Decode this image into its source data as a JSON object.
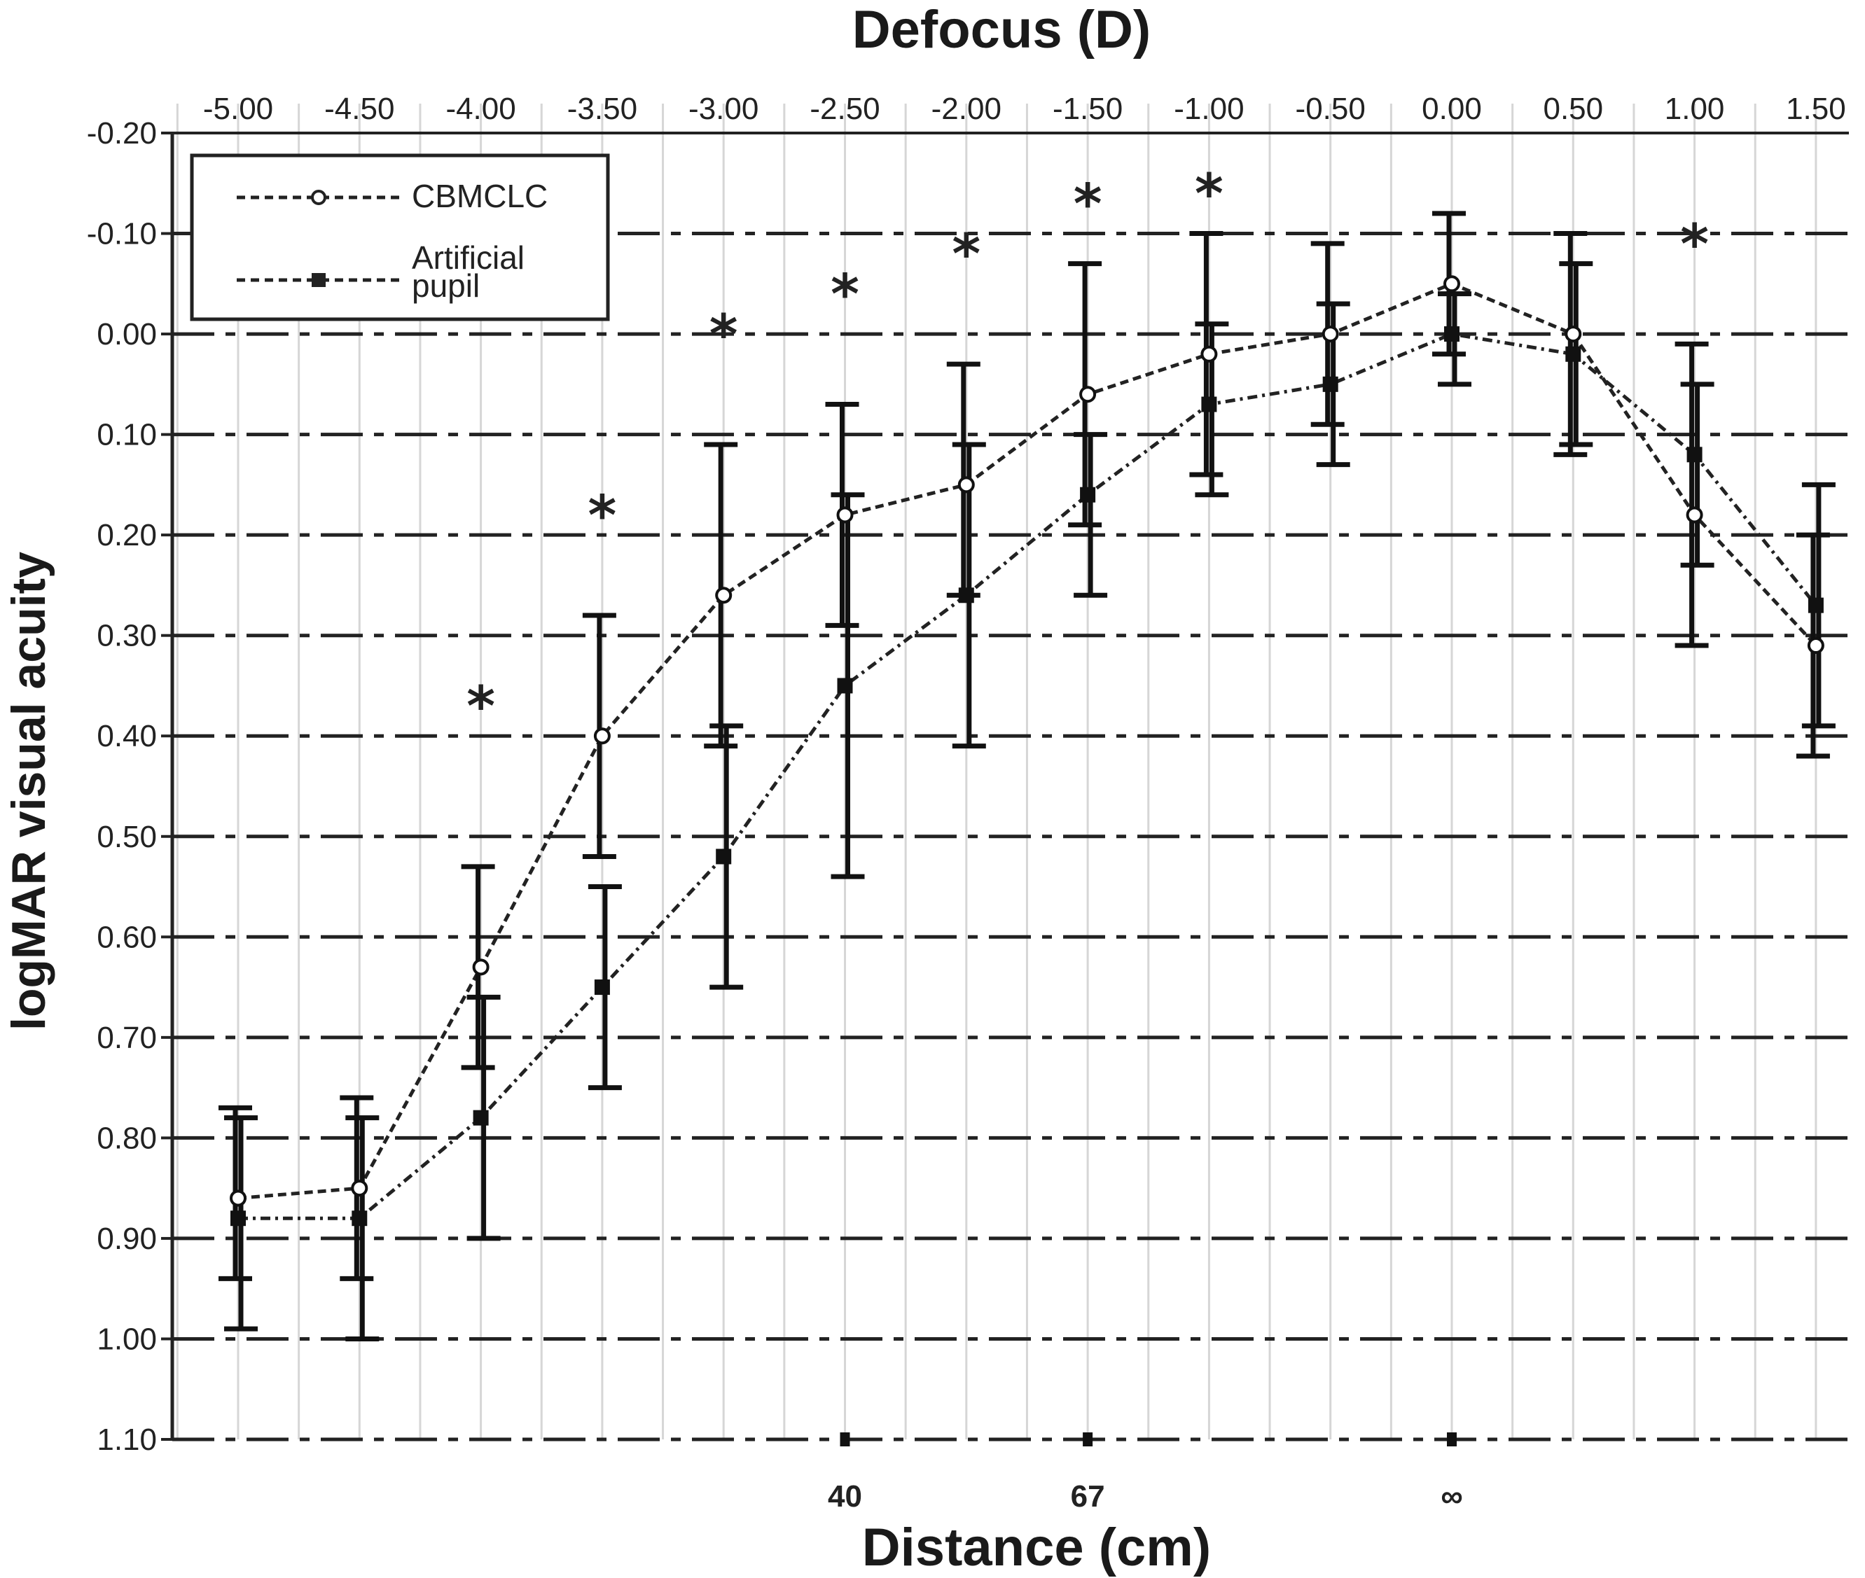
{
  "chart_data": {
    "type": "line",
    "title_top": "Defocus (D)",
    "xlabel": "Distance (cm)",
    "ylabel": "logMAR visual acuity",
    "x_ticks": [
      "-5.00",
      "-4.50",
      "-4.00",
      "-3.50",
      "-3.00",
      "-2.50",
      "-2.00",
      "-1.50",
      "-1.00",
      "-0.50",
      "0.00",
      "0.50",
      "1.00",
      "1.50"
    ],
    "x": [
      -5.0,
      -4.5,
      -4.0,
      -3.5,
      -3.0,
      -2.5,
      -2.0,
      -1.5,
      -1.0,
      -0.5,
      0.0,
      0.5,
      1.0,
      1.5
    ],
    "xlim": [
      -5.25,
      1.75
    ],
    "y_ticks": [
      "-0.20",
      "-0.10",
      "0.00",
      "0.10",
      "0.20",
      "0.30",
      "0.40",
      "0.50",
      "0.60",
      "0.70",
      "0.80",
      "0.90",
      "1.00",
      "1.10"
    ],
    "ylim": [
      -0.2,
      1.1
    ],
    "y_inverted": true,
    "distance_labels": [
      {
        "defocus": -2.5,
        "label": "40"
      },
      {
        "defocus": -1.5,
        "label": "67"
      },
      {
        "defocus": 0.0,
        "label": "∞"
      }
    ],
    "series": [
      {
        "name": "CBMCLC",
        "marker": "open-circle",
        "values": [
          0.86,
          0.85,
          0.63,
          0.4,
          0.26,
          0.18,
          0.15,
          0.06,
          0.02,
          0.0,
          -0.05,
          0.0,
          0.18,
          0.31
        ],
        "err_low": [
          0.77,
          0.76,
          0.53,
          0.28,
          0.11,
          0.07,
          0.03,
          -0.07,
          -0.1,
          -0.09,
          -0.12,
          -0.1,
          0.01,
          0.2
        ],
        "err_high": [
          0.94,
          0.94,
          0.73,
          0.52,
          0.41,
          0.29,
          0.26,
          0.19,
          0.14,
          0.09,
          0.02,
          0.12,
          0.31,
          0.42
        ]
      },
      {
        "name": "Artificial pupil",
        "marker": "filled-square",
        "values": [
          0.88,
          0.88,
          0.78,
          0.65,
          0.52,
          0.35,
          0.26,
          0.16,
          0.07,
          0.05,
          0.0,
          0.02,
          0.12,
          0.27
        ],
        "err_low": [
          0.78,
          0.78,
          0.66,
          0.55,
          0.39,
          0.16,
          0.11,
          0.1,
          -0.01,
          -0.03,
          -0.04,
          -0.07,
          0.05,
          0.15
        ],
        "err_high": [
          0.99,
          1.0,
          0.9,
          0.75,
          0.65,
          0.54,
          0.41,
          0.26,
          0.16,
          0.13,
          0.05,
          0.11,
          0.23,
          0.39
        ]
      }
    ],
    "significance_marks": [
      {
        "defocus": -4.0,
        "label": "*",
        "at": 0.37
      },
      {
        "defocus": -3.5,
        "label": "*",
        "at": 0.18
      },
      {
        "defocus": -3.0,
        "label": "*",
        "at": 0.0
      },
      {
        "defocus": -2.5,
        "label": "*",
        "at": -0.04
      },
      {
        "defocus": -2.0,
        "label": "*",
        "at": -0.08
      },
      {
        "defocus": -1.5,
        "label": "*",
        "at": -0.13
      },
      {
        "defocus": -1.0,
        "label": "*",
        "at": -0.14
      },
      {
        "defocus": 1.0,
        "label": "*",
        "at": -0.09
      }
    ],
    "legend": {
      "position": "top-left",
      "entries": [
        {
          "series": "CBMCLC",
          "label_lines": [
            "CBMCLC"
          ]
        },
        {
          "series": "Artificial pupil",
          "label_lines": [
            "Artificial",
            "pupil"
          ]
        }
      ]
    },
    "grid": true
  }
}
